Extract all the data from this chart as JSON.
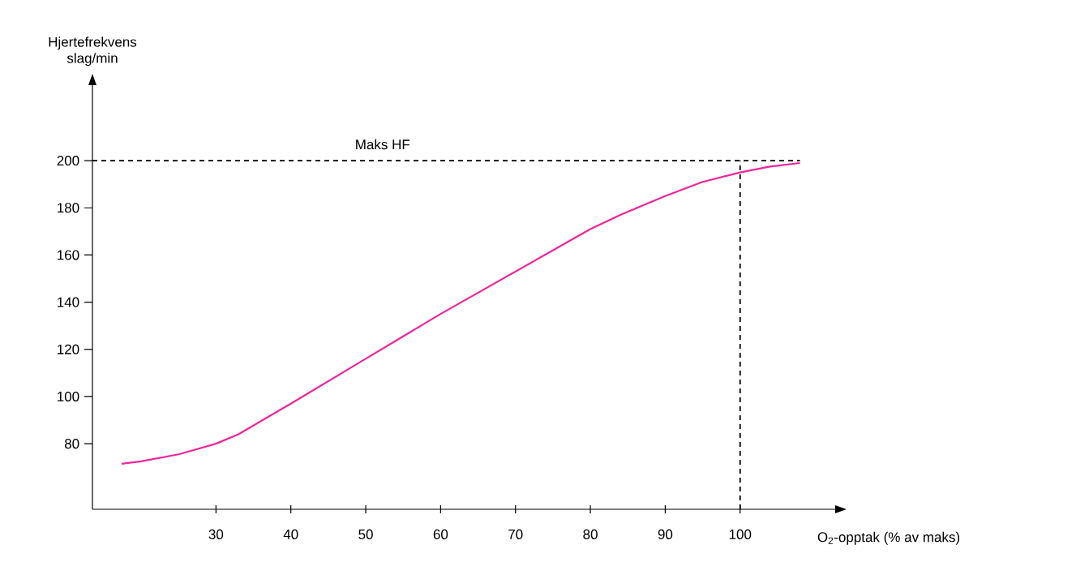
{
  "chart_data": {
    "type": "line",
    "xlabel": "O$_{2}$-opptak (% av maks)",
    "ylabel": "Hjertefrekvens slag/min",
    "x": [
      17.4,
      20,
      25,
      30,
      33,
      40,
      50,
      60,
      70,
      80,
      84,
      90,
      95,
      100,
      104,
      108
    ],
    "series": [
      {
        "color": "#f0259b",
        "values": [
          71.5,
          72.5,
          75.5,
          80,
          84,
          97,
          116,
          135,
          153,
          171,
          177,
          185,
          191,
          195,
          197.5,
          199
        ]
      }
    ],
    "xlim": [
      13.5,
      112.7
    ],
    "ylim": [
      52.2,
      232
    ],
    "xticks": [
      30,
      40,
      50,
      60,
      70,
      80,
      90,
      100
    ],
    "yticks": [
      80,
      100,
      120,
      140,
      160,
      180,
      200
    ],
    "ref_lines": [
      {
        "axis": "y",
        "value": 200,
        "label": "Maks HF",
        "color": "#000000",
        "line_style": "dashed"
      },
      {
        "axis": "x",
        "value": 100,
        "color": "#000000",
        "line_style": "dashed"
      }
    ],
    "grid": false,
    "marker": "none",
    "line_style": "solid"
  }
}
